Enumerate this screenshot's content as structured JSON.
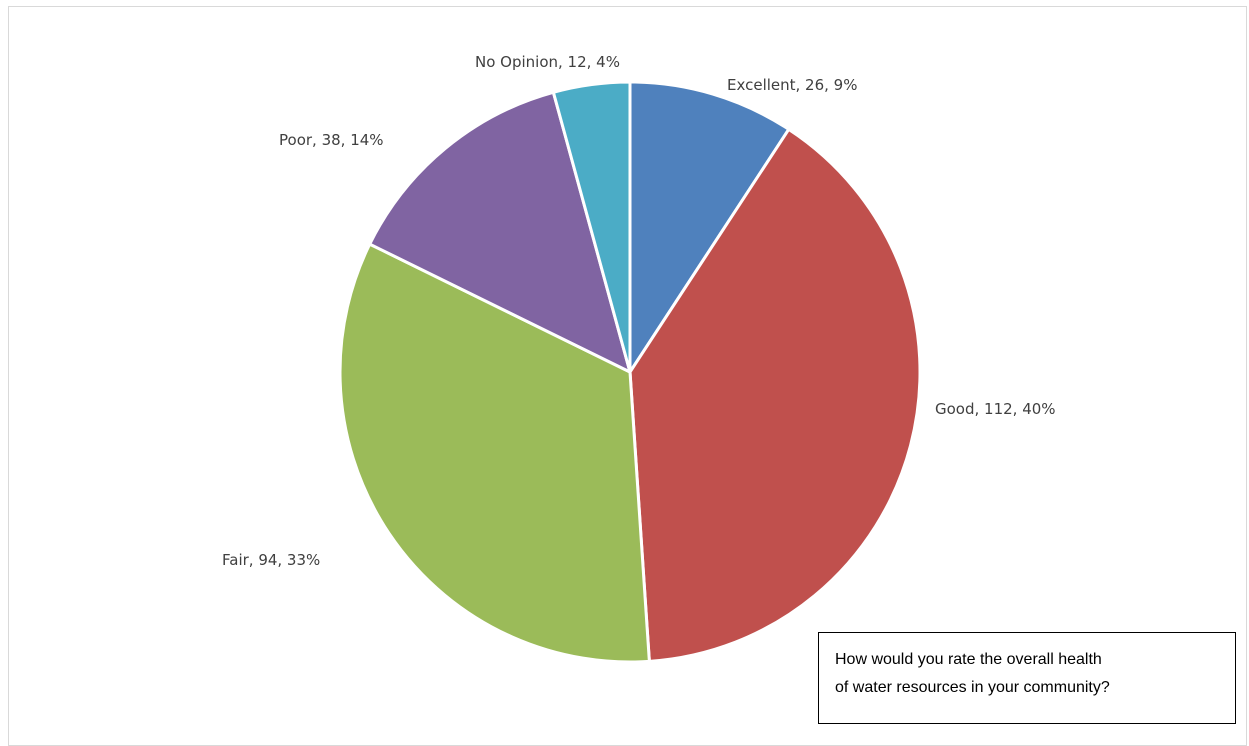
{
  "chart_data": {
    "type": "pie",
    "categories": [
      "Excellent",
      "Good",
      "Fair",
      "Poor",
      "No Opinion"
    ],
    "values": [
      26,
      112,
      94,
      38,
      12
    ],
    "percentages": [
      "9%",
      "40%",
      "33%",
      "14%",
      "4%"
    ],
    "labels": [
      "Excellent, 26, 9%",
      "Good, 112, 40%",
      "Fair, 94, 33%",
      "Poor, 38, 14%",
      "No Opinion, 12, 4%"
    ],
    "colors": [
      "#4f81bd",
      "#c0504d",
      "#9bbb59",
      "#8064a2",
      "#4bacc6"
    ],
    "start": "12 o'clock",
    "direction": "clockwise"
  },
  "annotation": {
    "line1": "How would you rate the overall health",
    "line2": "of water resources in your community?"
  }
}
